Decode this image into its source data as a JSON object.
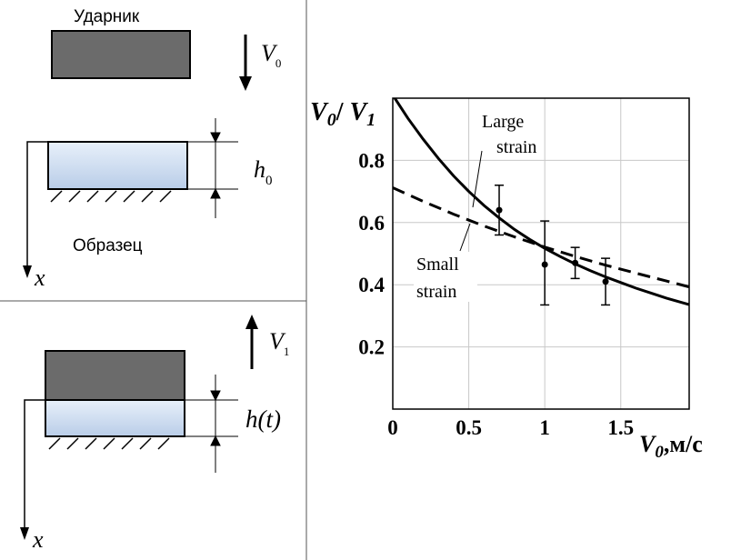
{
  "top_panel": {
    "striker_label": "Ударник",
    "v0_symbol": "V",
    "v0_sub": "0",
    "h0_symbol": "h",
    "h0_sub": "0",
    "specimen_label": "Образец",
    "x_axis_label": "x"
  },
  "bottom_panel": {
    "v1_symbol": "V",
    "v1_sub": "1",
    "ht_label": "h(t)",
    "x_axis_label": "x"
  },
  "colors": {
    "striker": "#6b6b6b",
    "specimen_top": "#e8f0fa",
    "specimen_bottom": "#b9cde8",
    "line": "#000000",
    "grid": "#c8c8c8"
  },
  "chart_data": {
    "type": "line",
    "ylabel_part1": "V",
    "ylabel_sub1": "0",
    "ylabel_slash": "/ ",
    "ylabel_part2": "V",
    "ylabel_sub2": "1",
    "xlabel_symbol": "V",
    "xlabel_sub": "0",
    "xlabel_unit": ",м/с",
    "xlim": [
      0,
      1.95
    ],
    "ylim": [
      0,
      1.0
    ],
    "grid": true,
    "x_ticks": [
      {
        "value": 0,
        "label": "0"
      },
      {
        "value": 0.5,
        "label": "0.5"
      },
      {
        "value": 1,
        "label": "1"
      },
      {
        "value": 1.5,
        "label": "1.5"
      }
    ],
    "y_ticks": [
      {
        "value": 0.2,
        "label": "0.2"
      },
      {
        "value": 0.4,
        "label": "0.4"
      },
      {
        "value": 0.6,
        "label": "0.6"
      },
      {
        "value": 0.8,
        "label": "0.8"
      }
    ],
    "series": [
      {
        "name": "Large strain",
        "style": "solid",
        "x": [
          0,
          0.1,
          0.2,
          0.3,
          0.4,
          0.5,
          0.6,
          0.7,
          0.8,
          0.9,
          1.0,
          1.1,
          1.2,
          1.3,
          1.4,
          1.5,
          1.6,
          1.7,
          1.8,
          1.9,
          1.95
        ],
        "y": [
          1.01,
          0.935,
          0.868,
          0.806,
          0.75,
          0.7,
          0.655,
          0.615,
          0.578,
          0.546,
          0.517,
          0.491,
          0.467,
          0.445,
          0.425,
          0.407,
          0.389,
          0.373,
          0.357,
          0.343,
          0.336
        ]
      },
      {
        "name": "Small strain",
        "style": "dashed",
        "x": [
          0,
          0.2,
          0.4,
          0.6,
          0.8,
          1.0,
          1.2,
          1.4,
          1.6,
          1.8,
          1.95
        ],
        "y": [
          0.712,
          0.668,
          0.627,
          0.589,
          0.554,
          0.521,
          0.491,
          0.463,
          0.437,
          0.412,
          0.393
        ]
      }
    ],
    "points": [
      {
        "x": 0.7,
        "y": 0.64,
        "err_low": 0.56,
        "err_high": 0.72
      },
      {
        "x": 1.0,
        "y": 0.465,
        "err_low": 0.335,
        "err_high": 0.605
      },
      {
        "x": 1.2,
        "y": 0.47,
        "err_low": 0.42,
        "err_high": 0.52
      },
      {
        "x": 1.4,
        "y": 0.41,
        "err_low": 0.335,
        "err_high": 0.485
      }
    ],
    "annotations": [
      {
        "line1": "Large",
        "line2": "strain"
      },
      {
        "line1": "Small",
        "line2": "strain"
      }
    ]
  }
}
